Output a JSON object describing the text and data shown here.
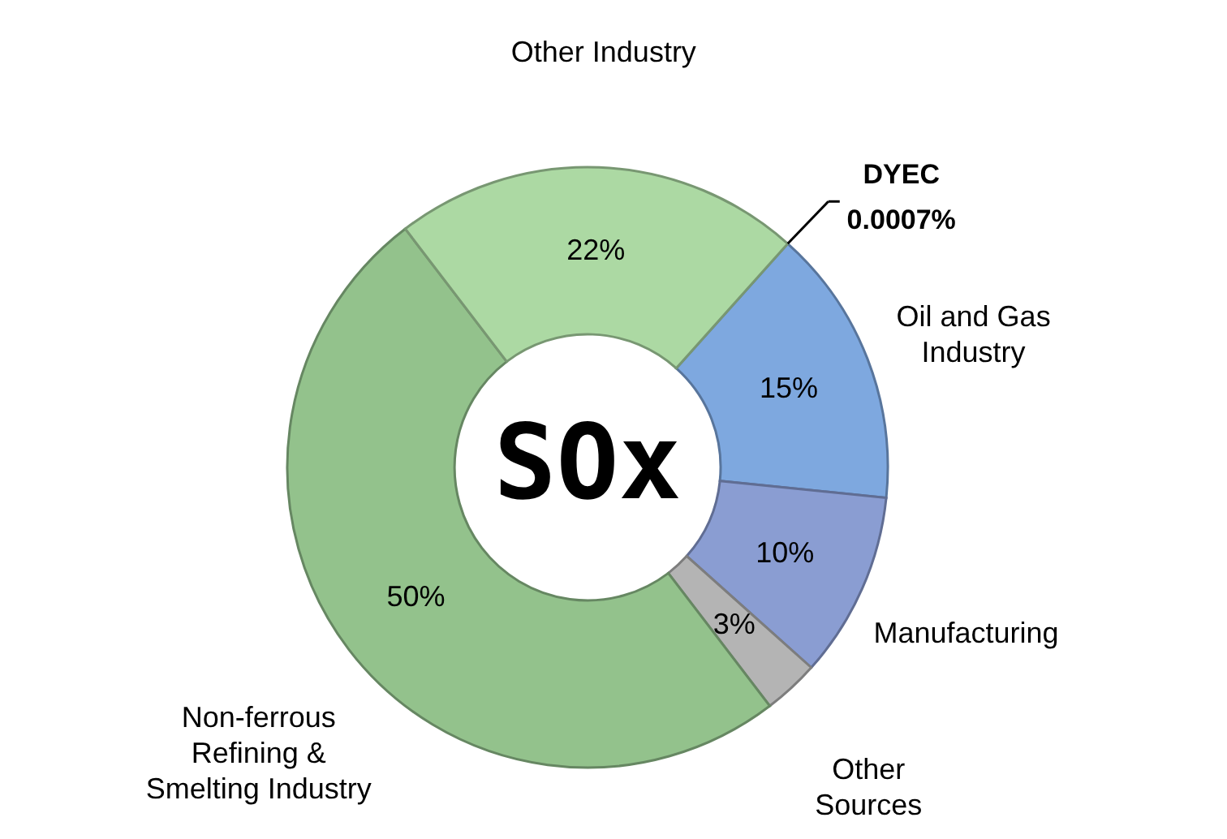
{
  "chart_data": {
    "type": "donut",
    "title": "SOx",
    "categories": [
      "DYEC",
      "Oil and Gas\nIndustry",
      "Manufacturing",
      "Other\nSources",
      "Non-ferrous\nRefining &\nSmelting Industry",
      "Other Industry"
    ],
    "values": [
      0.0007,
      15,
      10,
      3,
      50,
      22
    ],
    "value_labels": [
      "0.0007%",
      "15%",
      "10%",
      "3%",
      "50%",
      "22%"
    ],
    "colors": [
      "#5b8fd6",
      "#7ea8df",
      "#8a9dd2",
      "#b4b4b4",
      "#93c28c",
      "#acd9a3"
    ]
  }
}
